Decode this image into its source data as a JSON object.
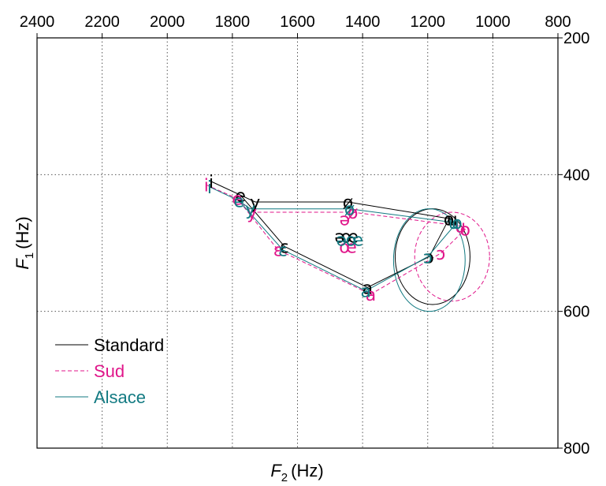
{
  "chart_data": {
    "type": "scatter",
    "x_axis": {
      "label": "F2 (Hz)",
      "label_main": "F",
      "label_sub": "2",
      "label_unit": "(Hz)",
      "range": [
        2400,
        800
      ],
      "ticks": [
        2400,
        2200,
        2000,
        1800,
        1600,
        1400,
        1200,
        1000,
        800
      ],
      "position": "top",
      "reversed": true
    },
    "y_axis": {
      "label": "F1 (Hz)",
      "label_main": "F",
      "label_sub": "1",
      "label_unit": "(Hz)",
      "range": [
        200,
        800
      ],
      "ticks": [
        200,
        400,
        600,
        800
      ],
      "position": "right",
      "reversed": true
    },
    "grid": true,
    "legend_position": "bottom-left",
    "series": [
      {
        "name": "Standard",
        "color": "#000000",
        "dash": "solid",
        "points": [
          {
            "v": "i",
            "f2": 1865,
            "f1": 410
          },
          {
            "v": "e",
            "f2": 1775,
            "f1": 430
          },
          {
            "v": "y",
            "f2": 1730,
            "f1": 440
          },
          {
            "v": "ø",
            "f2": 1445,
            "f1": 440
          },
          {
            "v": "u",
            "f2": 1125,
            "f1": 465
          },
          {
            "v": "o",
            "f2": 1135,
            "f1": 465
          },
          {
            "v": "ɔ",
            "f2": 1195,
            "f1": 520
          },
          {
            "v": "a",
            "f2": 1385,
            "f1": 565
          },
          {
            "v": "ɛ",
            "f2": 1640,
            "f1": 505
          },
          {
            "v": "ə",
            "f2": 1470,
            "f1": 490
          },
          {
            "v": "œ",
            "f2": 1440,
            "f1": 490
          }
        ],
        "polygon": [
          "i",
          "e",
          "ɛ",
          "a",
          "ɔ",
          "o",
          "u",
          "ø",
          "y",
          "e"
        ],
        "ellipse": {
          "cx": 1185,
          "cy": 520,
          "rx": 115,
          "ry": 70
        }
      },
      {
        "name": "Sud",
        "color": "#e0168a",
        "dash": "dashed",
        "points": [
          {
            "v": "i",
            "f2": 1880,
            "f1": 415
          },
          {
            "v": "e",
            "f2": 1785,
            "f1": 435
          },
          {
            "v": "y",
            "f2": 1740,
            "f1": 455
          },
          {
            "v": "ø",
            "f2": 1430,
            "f1": 455
          },
          {
            "v": "u",
            "f2": 1100,
            "f1": 475
          },
          {
            "v": "o",
            "f2": 1085,
            "f1": 480
          },
          {
            "v": "ɔ",
            "f2": 1160,
            "f1": 515
          },
          {
            "v": "a",
            "f2": 1375,
            "f1": 575
          },
          {
            "v": "ɛ",
            "f2": 1660,
            "f1": 510
          },
          {
            "v": "ə",
            "f2": 1455,
            "f1": 465
          },
          {
            "v": "œ",
            "f2": 1445,
            "f1": 505
          }
        ],
        "polygon": [
          "i",
          "e",
          "ɛ",
          "a",
          "ɔ",
          "o",
          "u",
          "ø",
          "y",
          "e"
        ],
        "ellipse": {
          "cx": 1125,
          "cy": 520,
          "rx": 115,
          "ry": 65
        }
      },
      {
        "name": "Alsace",
        "color": "#127a82",
        "dash": "solid",
        "points": [
          {
            "v": "i",
            "f2": 1870,
            "f1": 418
          },
          {
            "v": "e",
            "f2": 1780,
            "f1": 438
          },
          {
            "v": "y",
            "f2": 1745,
            "f1": 450
          },
          {
            "v": "ø",
            "f2": 1440,
            "f1": 450
          },
          {
            "v": "u",
            "f2": 1120,
            "f1": 470
          },
          {
            "v": "o",
            "f2": 1110,
            "f1": 470
          },
          {
            "v": "ɔ",
            "f2": 1200,
            "f1": 520
          },
          {
            "v": "a",
            "f2": 1390,
            "f1": 570
          },
          {
            "v": "ɛ",
            "f2": 1645,
            "f1": 510
          },
          {
            "v": "ə",
            "f2": 1465,
            "f1": 495
          },
          {
            "v": "œ",
            "f2": 1425,
            "f1": 495
          }
        ],
        "polygon": [
          "i",
          "e",
          "ɛ",
          "a",
          "ɔ",
          "o",
          "u",
          "ø",
          "y",
          "e"
        ],
        "ellipse": {
          "cx": 1195,
          "cy": 525,
          "rx": 110,
          "ry": 75
        }
      }
    ]
  }
}
